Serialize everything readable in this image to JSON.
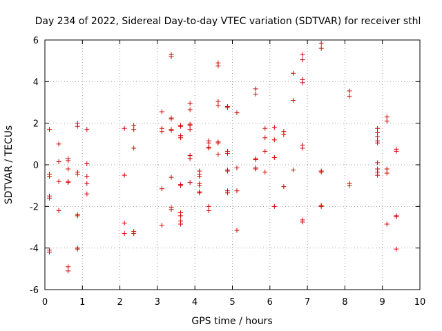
{
  "chart_data": {
    "type": "scatter",
    "title": "Day 234 of 2022, Sidereal Day-to-day VTEC variation (SDTVAR) for receiver sthl",
    "xlabel": "GPS time / hours",
    "ylabel": "SDTVAR / TECUs",
    "xlim": [
      0,
      10
    ],
    "ylim": [
      -6,
      6
    ],
    "xticks": [
      "0",
      "1",
      "2",
      "3",
      "4",
      "5",
      "6",
      "7",
      "8",
      "9",
      "10"
    ],
    "yticks": [
      "-6",
      "-4",
      "-2",
      "0",
      "2",
      "4",
      "6"
    ],
    "grid": true,
    "marker": "+",
    "color": "#d40000",
    "series": [
      {
        "name": "sthl",
        "points": [
          [
            0.12,
            1.7
          ],
          [
            0.12,
            -0.45
          ],
          [
            0.12,
            -0.55
          ],
          [
            0.12,
            -1.5
          ],
          [
            0.12,
            -1.6
          ],
          [
            0.12,
            -4.1
          ],
          [
            0.12,
            -4.2
          ],
          [
            0.37,
            1.0
          ],
          [
            0.37,
            0.15
          ],
          [
            0.37,
            -0.8
          ],
          [
            0.37,
            -2.2
          ],
          [
            0.62,
            0.3
          ],
          [
            0.62,
            0.2
          ],
          [
            0.62,
            -0.2
          ],
          [
            0.62,
            -0.8
          ],
          [
            0.62,
            -0.85
          ],
          [
            0.62,
            -4.9
          ],
          [
            0.62,
            -5.1
          ],
          [
            0.87,
            2.0
          ],
          [
            0.87,
            1.85
          ],
          [
            0.87,
            -0.35
          ],
          [
            0.87,
            -0.45
          ],
          [
            0.87,
            -2.4
          ],
          [
            0.87,
            -2.45
          ],
          [
            0.87,
            -4.0
          ],
          [
            0.87,
            -4.05
          ],
          [
            1.12,
            1.7
          ],
          [
            1.12,
            0.05
          ],
          [
            1.12,
            -0.55
          ],
          [
            1.12,
            -0.9
          ],
          [
            1.12,
            -1.4
          ],
          [
            2.12,
            1.75
          ],
          [
            2.12,
            -0.5
          ],
          [
            2.12,
            -2.8
          ],
          [
            2.12,
            -3.3
          ],
          [
            2.37,
            1.9
          ],
          [
            2.37,
            1.7
          ],
          [
            2.37,
            0.8
          ],
          [
            2.37,
            -3.2
          ],
          [
            2.37,
            -3.3
          ],
          [
            3.12,
            2.55
          ],
          [
            3.12,
            1.75
          ],
          [
            3.12,
            1.6
          ],
          [
            3.12,
            -1.15
          ],
          [
            3.12,
            -2.9
          ],
          [
            3.37,
            5.3
          ],
          [
            3.37,
            5.2
          ],
          [
            3.37,
            2.25
          ],
          [
            3.37,
            2.2
          ],
          [
            3.37,
            1.7
          ],
          [
            3.37,
            1.65
          ],
          [
            3.37,
            -0.6
          ],
          [
            3.37,
            -2.05
          ],
          [
            3.37,
            -2.15
          ],
          [
            3.62,
            1.9
          ],
          [
            3.62,
            1.85
          ],
          [
            3.62,
            1.4
          ],
          [
            3.62,
            1.3
          ],
          [
            3.62,
            -0.95
          ],
          [
            3.62,
            -1.0
          ],
          [
            3.62,
            -2.3
          ],
          [
            3.62,
            -2.45
          ],
          [
            3.62,
            -2.7
          ],
          [
            3.62,
            -2.85
          ],
          [
            3.87,
            2.95
          ],
          [
            3.87,
            2.65
          ],
          [
            3.87,
            1.95
          ],
          [
            3.87,
            1.9
          ],
          [
            3.87,
            1.7
          ],
          [
            3.87,
            0.45
          ],
          [
            3.87,
            0.3
          ],
          [
            3.87,
            -0.85
          ],
          [
            4.12,
            -0.3
          ],
          [
            4.12,
            -0.45
          ],
          [
            4.12,
            -0.55
          ],
          [
            4.12,
            -0.9
          ],
          [
            4.12,
            -1.0
          ],
          [
            4.12,
            -1.3
          ],
          [
            4.12,
            -1.35
          ],
          [
            4.37,
            1.15
          ],
          [
            4.37,
            1.05
          ],
          [
            4.37,
            0.85
          ],
          [
            4.37,
            0.8
          ],
          [
            4.37,
            -2.0
          ],
          [
            4.37,
            -2.2
          ],
          [
            4.62,
            4.9
          ],
          [
            4.62,
            4.75
          ],
          [
            4.62,
            3.05
          ],
          [
            4.62,
            2.85
          ],
          [
            4.62,
            1.1
          ],
          [
            4.62,
            1.05
          ],
          [
            4.62,
            0.5
          ],
          [
            4.87,
            2.8
          ],
          [
            4.87,
            2.75
          ],
          [
            4.87,
            0.65
          ],
          [
            4.87,
            0.55
          ],
          [
            4.87,
            -0.25
          ],
          [
            4.87,
            -0.3
          ],
          [
            4.87,
            -1.25
          ],
          [
            4.87,
            -1.35
          ],
          [
            5.12,
            2.5
          ],
          [
            5.12,
            -0.15
          ],
          [
            5.12,
            -1.25
          ],
          [
            5.12,
            -3.15
          ],
          [
            5.62,
            3.65
          ],
          [
            5.62,
            3.4
          ],
          [
            5.62,
            0.3
          ],
          [
            5.62,
            0.25
          ],
          [
            5.62,
            -0.15
          ],
          [
            5.62,
            -0.2
          ],
          [
            5.87,
            1.75
          ],
          [
            5.87,
            1.3
          ],
          [
            5.87,
            0.65
          ],
          [
            5.87,
            -0.35
          ],
          [
            6.12,
            1.8
          ],
          [
            6.12,
            1.2
          ],
          [
            6.12,
            0.35
          ],
          [
            6.12,
            -2.0
          ],
          [
            6.37,
            1.6
          ],
          [
            6.37,
            1.45
          ],
          [
            6.37,
            -1.05
          ],
          [
            6.62,
            4.4
          ],
          [
            6.62,
            3.1
          ],
          [
            6.62,
            -0.25
          ],
          [
            6.87,
            5.3
          ],
          [
            6.87,
            5.05
          ],
          [
            6.87,
            4.1
          ],
          [
            6.87,
            3.95
          ],
          [
            6.87,
            0.95
          ],
          [
            6.87,
            0.8
          ],
          [
            6.87,
            -2.65
          ],
          [
            6.87,
            -2.75
          ],
          [
            7.37,
            5.85
          ],
          [
            7.37,
            5.6
          ],
          [
            7.37,
            -0.3
          ],
          [
            7.37,
            -0.35
          ],
          [
            7.37,
            -1.95
          ],
          [
            7.37,
            -2.0
          ],
          [
            8.12,
            3.55
          ],
          [
            8.12,
            3.3
          ],
          [
            8.12,
            -0.9
          ],
          [
            8.12,
            -1.0
          ],
          [
            8.87,
            1.75
          ],
          [
            8.87,
            1.55
          ],
          [
            8.87,
            1.35
          ],
          [
            8.87,
            1.15
          ],
          [
            8.87,
            1.05
          ],
          [
            8.87,
            0.1
          ],
          [
            8.87,
            -0.2
          ],
          [
            8.87,
            -0.35
          ],
          [
            8.87,
            -0.5
          ],
          [
            9.12,
            2.3
          ],
          [
            9.12,
            2.1
          ],
          [
            9.12,
            -0.2
          ],
          [
            9.12,
            -0.4
          ],
          [
            9.12,
            -2.85
          ],
          [
            9.37,
            0.75
          ],
          [
            9.37,
            0.65
          ],
          [
            9.37,
            -2.45
          ],
          [
            9.37,
            -2.5
          ],
          [
            9.37,
            -4.05
          ]
        ]
      }
    ]
  }
}
